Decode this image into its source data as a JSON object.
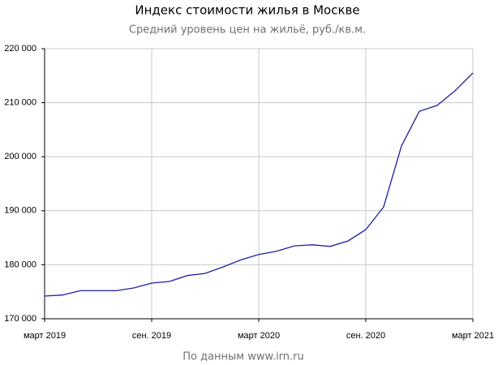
{
  "chart_data": {
    "type": "line",
    "title": "Индекс стоимости жилья в Москве",
    "subtitle": "Средний уровень цен на жильё, руб./кв.м.",
    "source": "По данным www.irn.ru",
    "categories": [
      "март 2019",
      null,
      null,
      null,
      null,
      null,
      "сен. 2019",
      null,
      null,
      null,
      null,
      null,
      "март 2020",
      null,
      null,
      null,
      null,
      null,
      "сен. 2020",
      null,
      null,
      null,
      null,
      null,
      "март 2021"
    ],
    "series": [
      {
        "name": "Средний уровень цен",
        "color": "#1f1fa3",
        "values": [
          174200,
          174400,
          175200,
          175200,
          175200,
          175700,
          176600,
          176900,
          178000,
          178400,
          179600,
          180900,
          181900,
          182500,
          183500,
          183700,
          183400,
          184400,
          186500,
          190700,
          202000,
          208400,
          209500,
          212200,
          215500
        ]
      }
    ],
    "ylim": [
      170000,
      220000
    ],
    "yticks": [
      {
        "value": 170000,
        "label": "170 000"
      },
      {
        "value": 180000,
        "label": "180 000"
      },
      {
        "value": 190000,
        "label": "190 000"
      },
      {
        "value": 200000,
        "label": "200 000"
      },
      {
        "value": 210000,
        "label": "210 000"
      },
      {
        "value": 220000,
        "label": "220 000"
      }
    ],
    "grid": true
  }
}
